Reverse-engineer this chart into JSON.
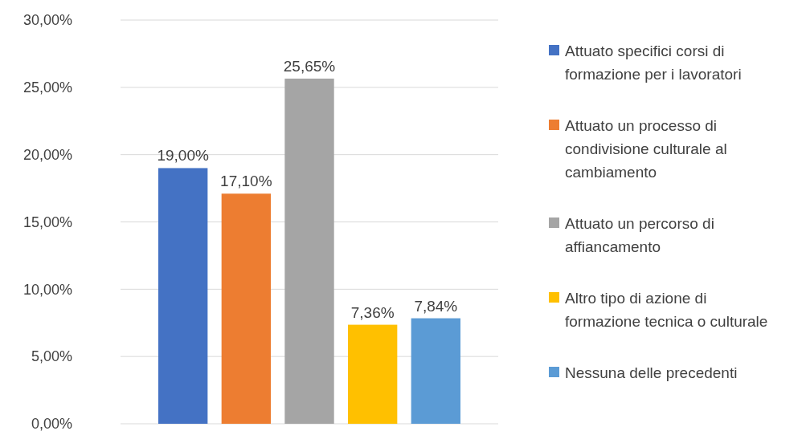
{
  "chart_data": {
    "type": "bar",
    "categories": [
      null
    ],
    "series": [
      {
        "name": "Attuato specifici corsi di formazione per i lavoratori",
        "color": "#4472c4",
        "values": [
          19.0
        ],
        "value_labels": [
          "19,00%"
        ]
      },
      {
        "name": "Attuato un processo di condivisione culturale al cambiamento",
        "color": "#ed7d31",
        "values": [
          17.1
        ],
        "value_labels": [
          "17,10%"
        ]
      },
      {
        "name": "Attuato un percorso di affiancamento",
        "color": "#a5a5a5",
        "values": [
          25.65
        ],
        "value_labels": [
          "25,65%"
        ]
      },
      {
        "name": "Altro tipo di azione di formazione tecnica o culturale",
        "color": "#ffc000",
        "values": [
          7.36
        ],
        "value_labels": [
          "7,36%"
        ]
      },
      {
        "name": "Nessuna delle precedenti",
        "color": "#5b9bd5",
        "values": [
          7.84
        ],
        "value_labels": [
          "7,84%"
        ]
      }
    ],
    "ylim": [
      0,
      30
    ],
    "yticks": [
      {
        "value": 0,
        "label": "0,00%"
      },
      {
        "value": 5,
        "label": "5,00%"
      },
      {
        "value": 10,
        "label": "10,00%"
      },
      {
        "value": 15,
        "label": "15,00%"
      },
      {
        "value": 20,
        "label": "20,00%"
      },
      {
        "value": 25,
        "label": "25,00%"
      },
      {
        "value": 30,
        "label": "30,00%"
      }
    ],
    "grid": "y",
    "legend": "right"
  }
}
